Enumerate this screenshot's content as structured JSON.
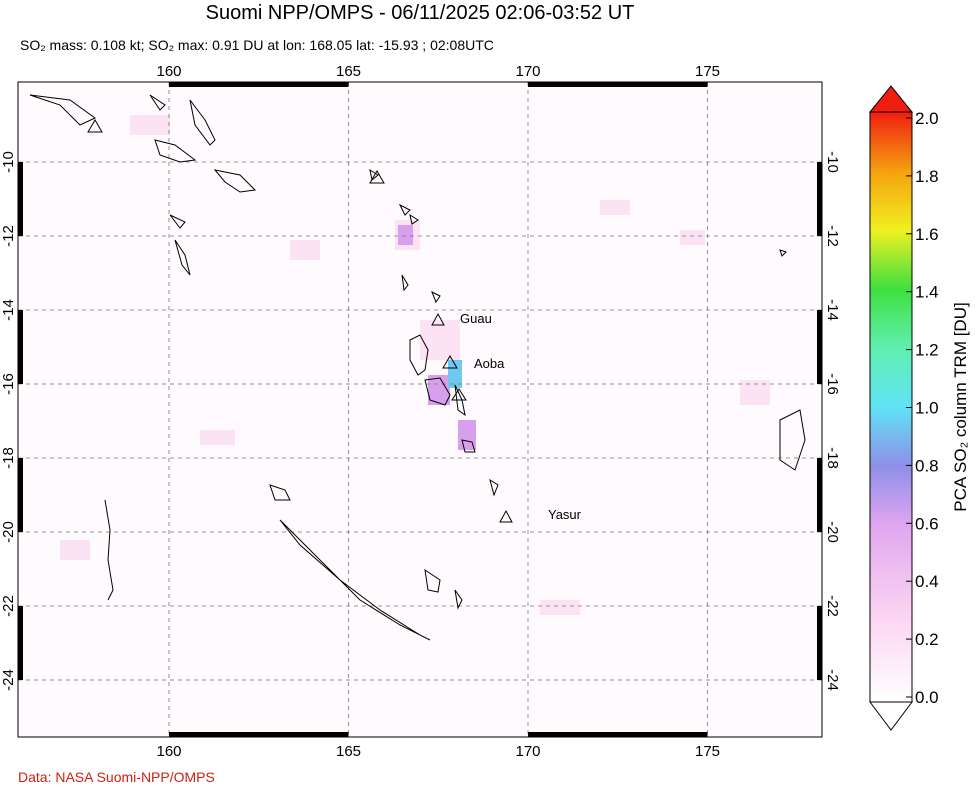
{
  "header": {
    "title": "Suomi NPP/OMPS - 06/11/2025 02:06-03:52 UT",
    "subtitle": "SO₂ mass: 0.108 kt; SO₂ max: 0.91 DU at lon: 168.05 lat: -15.93 ; 02:08UTC"
  },
  "map": {
    "lon_ticks": [
      160,
      165,
      170,
      175
    ],
    "lat_ticks": [
      -10,
      -12,
      -14,
      -16,
      -18,
      -20,
      -22,
      -24
    ],
    "volcanoes": [
      {
        "label": "Guau"
      },
      {
        "label": "Aoba"
      },
      {
        "label": "Yasur"
      }
    ]
  },
  "colorbar": {
    "label": "PCA SO₂ column TRM [DU]",
    "ticks": [
      "0.0",
      "0.2",
      "0.4",
      "0.6",
      "0.8",
      "1.0",
      "1.2",
      "1.4",
      "1.6",
      "1.8",
      "2.0"
    ]
  },
  "footer": {
    "credit": "Data: NASA Suomi-NPP/OMPS"
  }
}
